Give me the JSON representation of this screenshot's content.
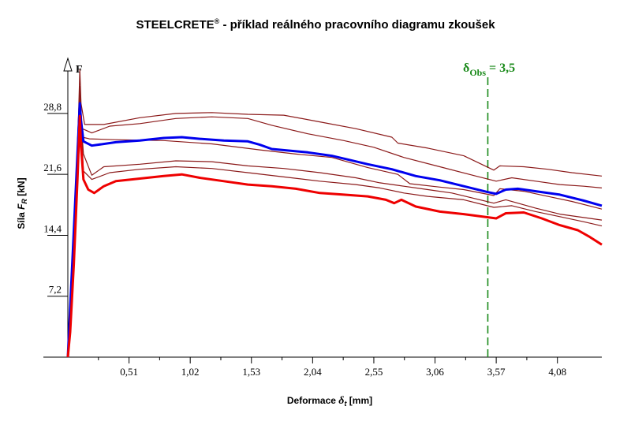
{
  "chart_data": {
    "type": "line",
    "title": "STEELCRETE",
    "title_sup": "®",
    "title_rest": " - příklad reálného pracovního diagramu zkoušek",
    "xlabel_prefix": "Deformace ",
    "xlabel_symbol": "δ",
    "xlabel_sub": "t",
    "xlabel_suffix": " [mm]",
    "ylabel_prefix": "Síla ",
    "ylabel_symbol": "F",
    "ylabel_sub": "R",
    "ylabel_suffix": " [kN]",
    "force_axis_label": "F",
    "xlim": [
      0,
      4.45
    ],
    "ylim": [
      0,
      35.5
    ],
    "x_ticks": [
      {
        "value": 0.51,
        "label": "0,51"
      },
      {
        "value": 1.02,
        "label": "1,02"
      },
      {
        "value": 1.53,
        "label": "1,53"
      },
      {
        "value": 2.04,
        "label": "2,04"
      },
      {
        "value": 2.55,
        "label": "2,55"
      },
      {
        "value": 3.06,
        "label": "3,06"
      },
      {
        "value": 3.57,
        "label": "3,57"
      },
      {
        "value": 4.08,
        "label": "4,08"
      }
    ],
    "y_ticks": [
      {
        "value": 7.2,
        "label": "7,2"
      },
      {
        "value": 14.4,
        "label": "14,4"
      },
      {
        "value": 21.6,
        "label": "21,6"
      },
      {
        "value": 28.8,
        "label": "28,8"
      }
    ],
    "obs_line": {
      "x": 3.5,
      "symbol": "δ",
      "sub": "Obs",
      "text": " = 3,5",
      "color": "#1a8a1a"
    },
    "series": [
      {
        "color": "#8b1a1a",
        "width": 1.2,
        "points": [
          [
            0,
            0
          ],
          [
            0.06,
            17
          ],
          [
            0.09,
            29
          ],
          [
            0.1,
            34
          ],
          [
            0.11,
            30
          ],
          [
            0.14,
            27.5
          ],
          [
            0.3,
            27.5
          ],
          [
            0.6,
            28.3
          ],
          [
            0.9,
            28.8
          ],
          [
            1.2,
            28.9
          ],
          [
            1.5,
            28.7
          ],
          [
            1.8,
            28.6
          ],
          [
            2.1,
            27.8
          ],
          [
            2.4,
            27
          ],
          [
            2.7,
            26
          ],
          [
            2.75,
            25.3
          ],
          [
            3.0,
            24.7
          ],
          [
            3.3,
            23.8
          ],
          [
            3.55,
            22.1
          ],
          [
            3.6,
            22.6
          ],
          [
            3.8,
            22.5
          ],
          [
            4.0,
            22.2
          ],
          [
            4.2,
            21.8
          ],
          [
            4.45,
            21.4
          ]
        ]
      },
      {
        "color": "#8b1a1a",
        "width": 1.2,
        "points": [
          [
            0,
            0
          ],
          [
            0.06,
            16
          ],
          [
            0.1,
            30.5
          ],
          [
            0.12,
            27
          ],
          [
            0.2,
            26.5
          ],
          [
            0.35,
            27.3
          ],
          [
            0.6,
            27.6
          ],
          [
            0.9,
            28.2
          ],
          [
            1.2,
            28.4
          ],
          [
            1.5,
            28.2
          ],
          [
            1.7,
            27.4
          ],
          [
            2.0,
            26.4
          ],
          [
            2.3,
            25.6
          ],
          [
            2.55,
            24.8
          ],
          [
            2.8,
            23.6
          ],
          [
            3.1,
            22.5
          ],
          [
            3.4,
            21.4
          ],
          [
            3.57,
            20.8
          ],
          [
            3.7,
            21.2
          ],
          [
            3.9,
            20.8
          ],
          [
            4.1,
            20.4
          ],
          [
            4.3,
            20.2
          ],
          [
            4.45,
            20.0
          ]
        ]
      },
      {
        "color": "#8b1a1a",
        "width": 1.2,
        "points": [
          [
            0,
            0
          ],
          [
            0.05,
            15
          ],
          [
            0.1,
            32
          ],
          [
            0.12,
            26
          ],
          [
            0.18,
            25.8
          ],
          [
            0.4,
            25.7
          ],
          [
            0.8,
            25.6
          ],
          [
            1.2,
            25.2
          ],
          [
            1.6,
            24.5
          ],
          [
            1.9,
            24
          ],
          [
            2.2,
            23.6
          ],
          [
            2.5,
            22.4
          ],
          [
            2.75,
            21.6
          ],
          [
            2.85,
            20.5
          ],
          [
            3.1,
            20.1
          ],
          [
            3.3,
            19.8
          ],
          [
            3.55,
            19.1
          ],
          [
            3.6,
            19.9
          ],
          [
            3.8,
            19.6
          ],
          [
            4.0,
            19.0
          ],
          [
            4.2,
            18.4
          ],
          [
            4.45,
            17.5
          ]
        ]
      },
      {
        "color": "#8b1a1a",
        "width": 1.2,
        "points": [
          [
            0,
            0
          ],
          [
            0.05,
            12
          ],
          [
            0.1,
            30
          ],
          [
            0.13,
            24
          ],
          [
            0.2,
            21.5
          ],
          [
            0.3,
            22.5
          ],
          [
            0.6,
            22.8
          ],
          [
            0.9,
            23.2
          ],
          [
            1.2,
            23.1
          ],
          [
            1.5,
            22.6
          ],
          [
            1.8,
            22.3
          ],
          [
            2.1,
            21.8
          ],
          [
            2.4,
            21.2
          ],
          [
            2.6,
            20.6
          ],
          [
            2.8,
            20.2
          ],
          [
            3.0,
            19.8
          ],
          [
            3.2,
            19.4
          ],
          [
            3.55,
            18.2
          ],
          [
            3.65,
            18.6
          ],
          [
            3.9,
            17.6
          ],
          [
            4.1,
            16.9
          ],
          [
            4.45,
            16.2
          ]
        ]
      },
      {
        "color": "#8b1a1a",
        "width": 1.2,
        "points": [
          [
            0,
            0
          ],
          [
            0.05,
            13
          ],
          [
            0.1,
            31
          ],
          [
            0.13,
            22
          ],
          [
            0.2,
            21
          ],
          [
            0.35,
            21.8
          ],
          [
            0.6,
            22.2
          ],
          [
            0.9,
            22.5
          ],
          [
            1.2,
            22.3
          ],
          [
            1.5,
            21.8
          ],
          [
            1.8,
            21.3
          ],
          [
            2.1,
            20.8
          ],
          [
            2.4,
            20.4
          ],
          [
            2.6,
            20.0
          ],
          [
            2.8,
            19.4
          ],
          [
            3.0,
            19.0
          ],
          [
            3.3,
            18.6
          ],
          [
            3.55,
            17.7
          ],
          [
            3.7,
            17.9
          ],
          [
            3.9,
            17.2
          ],
          [
            4.1,
            16.6
          ],
          [
            4.3,
            16.0
          ],
          [
            4.45,
            15.5
          ]
        ]
      },
      {
        "color": "#0000ee",
        "width": 3,
        "points": [
          [
            0,
            0
          ],
          [
            0.04,
            12
          ],
          [
            0.08,
            24
          ],
          [
            0.1,
            30
          ],
          [
            0.11,
            28
          ],
          [
            0.13,
            25.5
          ],
          [
            0.2,
            25
          ],
          [
            0.4,
            25.4
          ],
          [
            0.6,
            25.6
          ],
          [
            0.8,
            25.9
          ],
          [
            0.95,
            26
          ],
          [
            1.1,
            25.8
          ],
          [
            1.3,
            25.6
          ],
          [
            1.5,
            25.5
          ],
          [
            1.6,
            25.1
          ],
          [
            1.7,
            24.6
          ],
          [
            2.0,
            24.2
          ],
          [
            2.2,
            23.8
          ],
          [
            2.5,
            22.8
          ],
          [
            2.7,
            22.2
          ],
          [
            2.9,
            21.4
          ],
          [
            3.1,
            20.9
          ],
          [
            3.3,
            20.2
          ],
          [
            3.5,
            19.5
          ],
          [
            3.57,
            19.3
          ],
          [
            3.65,
            19.8
          ],
          [
            3.75,
            19.9
          ],
          [
            3.9,
            19.6
          ],
          [
            4.1,
            19.2
          ],
          [
            4.3,
            18.5
          ],
          [
            4.45,
            17.9
          ]
        ]
      },
      {
        "color": "#ee0000",
        "width": 3,
        "points": [
          [
            0,
            0
          ],
          [
            0.02,
            3
          ],
          [
            0.05,
            11
          ],
          [
            0.08,
            21
          ],
          [
            0.1,
            28.5
          ],
          [
            0.11,
            25
          ],
          [
            0.13,
            21
          ],
          [
            0.17,
            19.8
          ],
          [
            0.22,
            19.4
          ],
          [
            0.3,
            20.2
          ],
          [
            0.4,
            20.8
          ],
          [
            0.6,
            21.1
          ],
          [
            0.8,
            21.4
          ],
          [
            0.95,
            21.6
          ],
          [
            1.1,
            21.2
          ],
          [
            1.3,
            20.8
          ],
          [
            1.5,
            20.4
          ],
          [
            1.7,
            20.2
          ],
          [
            1.9,
            19.9
          ],
          [
            2.1,
            19.4
          ],
          [
            2.3,
            19.2
          ],
          [
            2.5,
            19.0
          ],
          [
            2.65,
            18.6
          ],
          [
            2.72,
            18.2
          ],
          [
            2.78,
            18.6
          ],
          [
            2.9,
            17.8
          ],
          [
            3.1,
            17.2
          ],
          [
            3.3,
            16.9
          ],
          [
            3.57,
            16.4
          ],
          [
            3.65,
            17.0
          ],
          [
            3.8,
            17.1
          ],
          [
            3.95,
            16.4
          ],
          [
            4.1,
            15.6
          ],
          [
            4.25,
            15.0
          ],
          [
            4.35,
            14.2
          ],
          [
            4.45,
            13.3
          ]
        ]
      }
    ]
  }
}
